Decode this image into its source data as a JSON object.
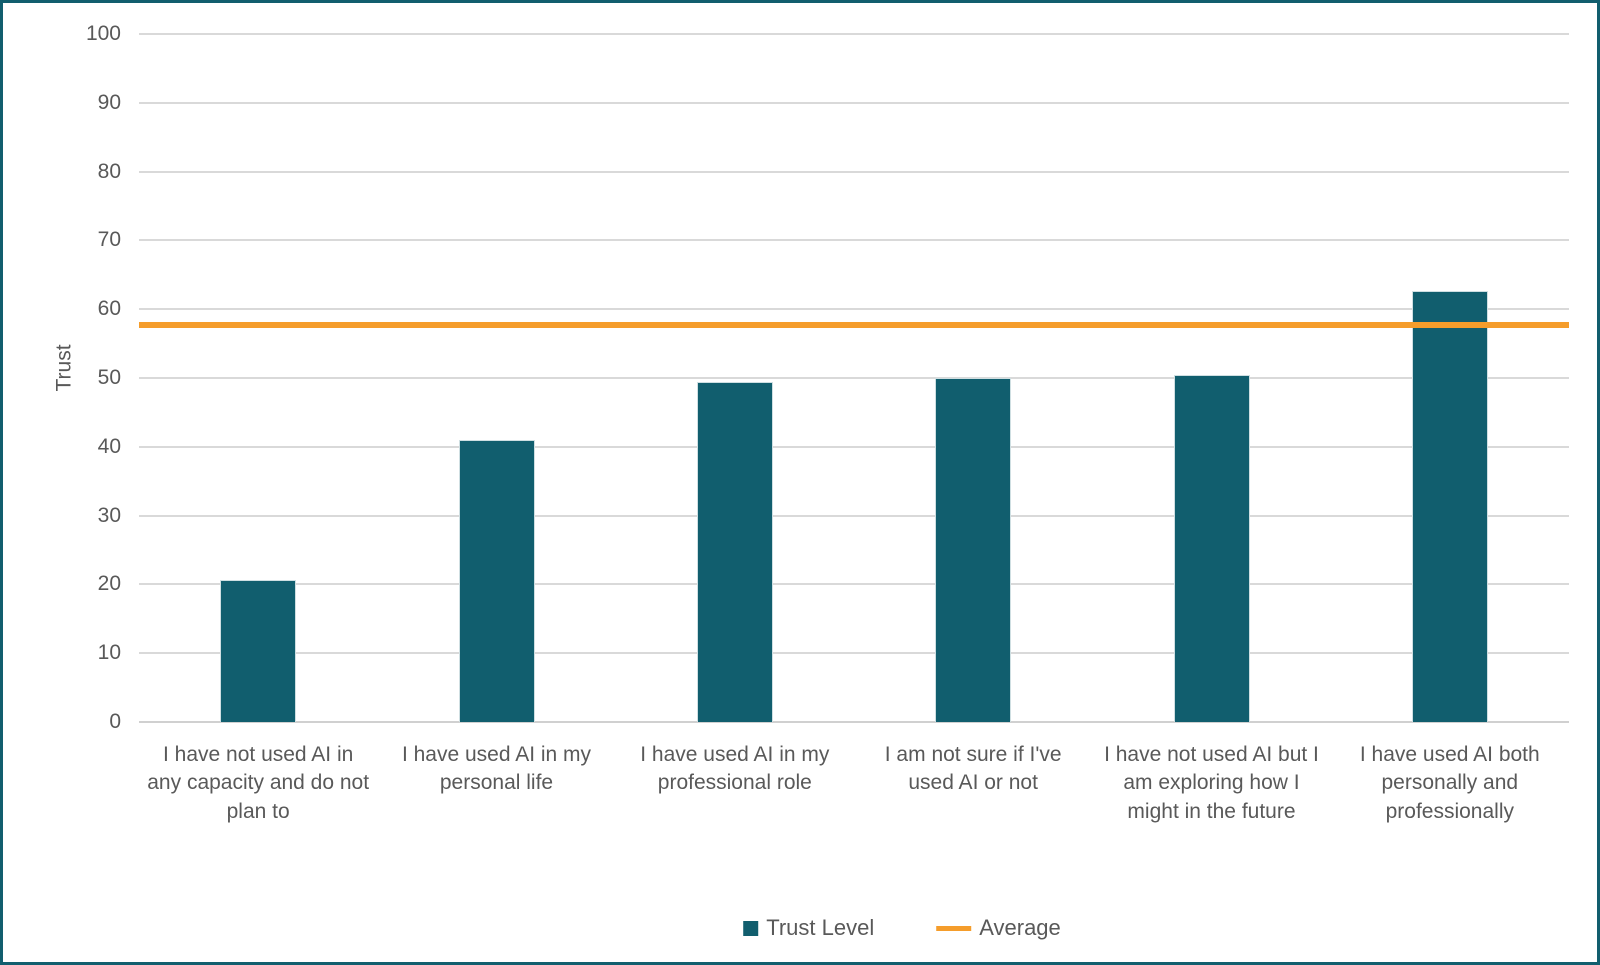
{
  "chart_data": {
    "type": "bar",
    "title": "",
    "ylabel": "Trust",
    "xlabel": "",
    "ylim": [
      0,
      100
    ],
    "ytick_step": 10,
    "grid": true,
    "legend_position": "bottom",
    "categories": [
      "I have not used AI in any capacity and do not plan to",
      "I have used AI in my personal life",
      "I have used AI in my professional role",
      "I am not sure if I've used AI or not",
      "I have not used AI but I am exploring how I might in the future",
      "I have used AI both personally and professionally"
    ],
    "series": [
      {
        "name": "Trust Level",
        "type": "bar",
        "color": "#115E6E",
        "values": [
          20.7,
          41.0,
          49.4,
          50.0,
          50.5,
          62.6
        ]
      },
      {
        "name": "Average",
        "type": "line",
        "color": "#F59D2B",
        "value": 57.7
      }
    ],
    "colors": {
      "bar": "#115E6E",
      "average_line": "#F59D2B",
      "gridline": "#D9D9D9",
      "text": "#595959",
      "frame_border": "#115E6E"
    }
  }
}
